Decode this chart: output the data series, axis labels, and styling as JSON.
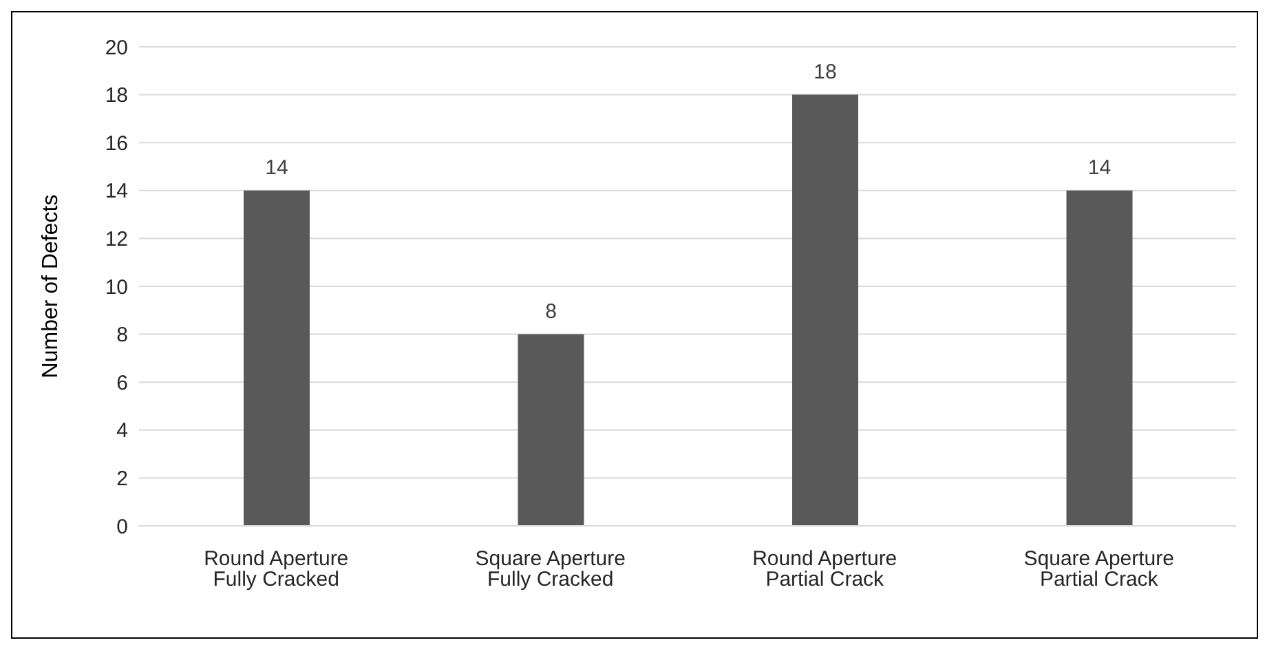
{
  "chart_data": {
    "type": "bar",
    "ylabel": "Number of Defects",
    "categories": [
      "Round Aperture Fully Cracked",
      "Square Aperture Fully Cracked",
      "Round Aperture Partial Crack",
      "Square Aperture Partial Crack"
    ],
    "values": [
      14,
      8,
      18,
      14
    ],
    "color": "#595959",
    "ylim": [
      0,
      20
    ],
    "yticks": [
      0,
      2,
      4,
      6,
      8,
      10,
      12,
      14,
      16,
      18,
      20
    ],
    "grid": "y",
    "data_labels": true
  }
}
